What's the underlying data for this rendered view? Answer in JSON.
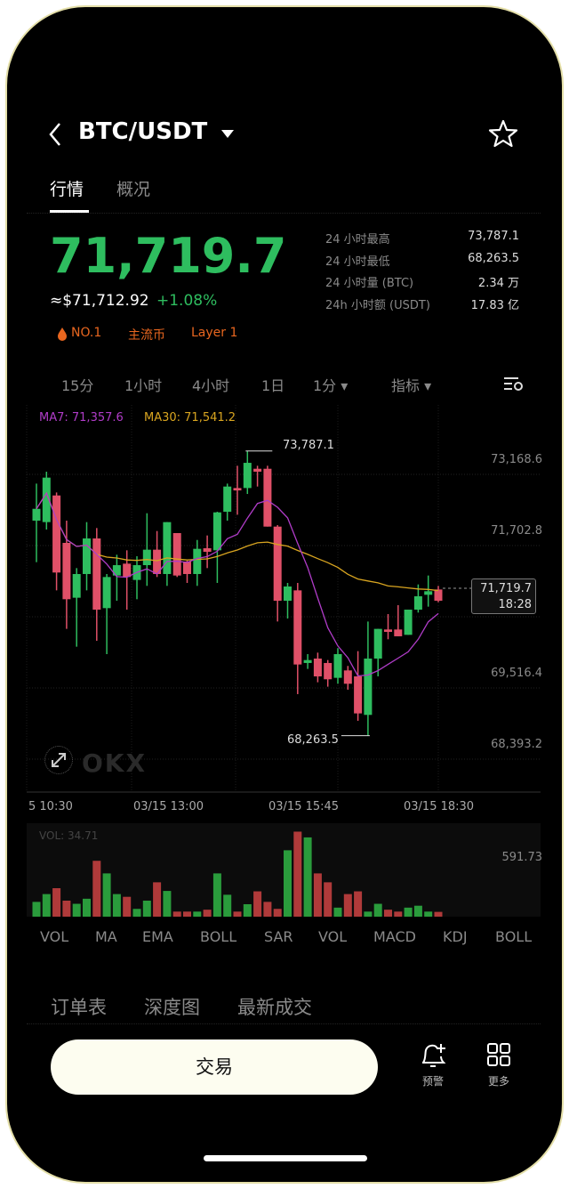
{
  "header": {
    "pair": "BTC/USDT",
    "back_icon": "chevron-left-icon",
    "dropdown_icon": "caret-down-icon",
    "favorite_icon": "star-icon"
  },
  "tabs": [
    {
      "label": "行情",
      "active": true
    },
    {
      "label": "概况",
      "active": false
    }
  ],
  "price": {
    "last": "71,719.7",
    "usd": "≈$71,712.92",
    "change": "+1.08%",
    "color": "#2ebd5f"
  },
  "tags": [
    {
      "label": "NO.1",
      "icon": "fire-icon"
    },
    {
      "label": "主流币"
    },
    {
      "label": "Layer 1"
    }
  ],
  "stats": [
    {
      "label": "24 小时最高",
      "value": "73,787.1"
    },
    {
      "label": "24 小时最低",
      "value": "68,263.5"
    },
    {
      "label": "24 小时量 (BTC)",
      "value": "2.34 万"
    },
    {
      "label": "24h 小时额 (USDT)",
      "value": "17.83 亿"
    }
  ],
  "timeframes": [
    {
      "label": "15分",
      "active": true
    },
    {
      "label": "1小时"
    },
    {
      "label": "4小时"
    },
    {
      "label": "1日"
    },
    {
      "label": "1分 ▾"
    },
    {
      "label": "指标 ▾"
    }
  ],
  "settings_icon": "chart-settings-icon",
  "indicators": [
    {
      "label": "VOL"
    },
    {
      "label": "MA",
      "active": true
    },
    {
      "label": "EMA"
    },
    {
      "label": "BOLL"
    },
    {
      "label": "SAR"
    },
    {
      "label": "VOL",
      "active": true
    },
    {
      "label": "MACD"
    },
    {
      "label": "KDJ"
    },
    {
      "label": "BOLL"
    }
  ],
  "orderbook_tabs": [
    {
      "label": "订单表",
      "active": true
    },
    {
      "label": "深度图"
    },
    {
      "label": "最新成交"
    }
  ],
  "footer": {
    "trade": "交易",
    "alert": "预警",
    "alert_icon": "bell-plus-icon",
    "more": "更多",
    "more_icon": "grid-icon"
  },
  "chart_data": {
    "type": "candlestick",
    "legend": {
      "ma7": "MA7: 71,357.6",
      "ma30": "MA30: 71,541.2"
    },
    "colors": {
      "up": "#2ebd5f",
      "down": "#e05068",
      "ma7": "#b03cc8",
      "ma30": "#d9a520"
    },
    "ylim": [
      67170,
      74680
    ],
    "y_ticks": [
      "73,168.6",
      "71,702.8",
      "69,516.4",
      "68,393.2"
    ],
    "x_ticks": [
      "5 10:30",
      "03/15 13:00",
      "03/15 15:45",
      "03/15 18:30"
    ],
    "high_label": "73,787.1",
    "low_label": "68,263.5",
    "current": {
      "price": "71,719.7",
      "time": "18:28"
    },
    "ohlc": [
      [
        72435,
        72665,
        73154,
        71630
      ],
      [
        72407,
        73270,
        73385,
        72263
      ],
      [
        72924,
        71429,
        72982,
        71083
      ],
      [
        72004,
        70911,
        72435,
        70336
      ],
      [
        70940,
        71400,
        71515,
        69990
      ],
      [
        71400,
        72090,
        72407,
        71083
      ],
      [
        72090,
        70709,
        72292,
        70105
      ],
      [
        70738,
        71342,
        71400,
        69846
      ],
      [
        71371,
        71572,
        71774,
        70882
      ],
      [
        71601,
        71342,
        71860,
        70709
      ],
      [
        71285,
        71572,
        71745,
        70911
      ],
      [
        71572,
        71872,
        72579,
        71170
      ],
      [
        71872,
        71400,
        72234,
        71342
      ],
      [
        71400,
        72407,
        72407,
        71170
      ],
      [
        72194,
        71371,
        72194,
        71342
      ],
      [
        71641,
        71400,
        71659,
        71227
      ],
      [
        71400,
        71889,
        72061,
        71170
      ],
      [
        71900,
        71831,
        72148,
        71515
      ],
      [
        71860,
        72596,
        72608,
        71227
      ],
      [
        72608,
        73097,
        73154,
        72435
      ],
      [
        73068,
        73022,
        73500,
        72550
      ],
      [
        73068,
        73557,
        73787.1,
        72953
      ],
      [
        73442,
        73385,
        73500,
        73097
      ],
      [
        73442,
        72320,
        73500,
        72320
      ],
      [
        72320,
        70882,
        72349,
        70479
      ],
      [
        70882,
        71158,
        71227,
        70537
      ],
      [
        71083,
        69645,
        71227,
        69070
      ],
      [
        69674,
        69731,
        69846,
        69559
      ],
      [
        69760,
        69414,
        69875,
        69300
      ],
      [
        69674,
        69358,
        69731,
        69214
      ],
      [
        69386,
        69846,
        69962,
        69271
      ],
      [
        69530,
        69271,
        69617,
        69156
      ],
      [
        69415,
        68696,
        69904,
        68552
      ],
      [
        68667,
        69760,
        70479,
        68263.5
      ],
      [
        69760,
        70336,
        70336,
        69415
      ],
      [
        70324,
        70278,
        70623,
        70134
      ],
      [
        70324,
        70192,
        70796,
        70192
      ],
      [
        70220,
        70709,
        70709,
        70220
      ],
      [
        70709,
        70968,
        71198,
        70652
      ],
      [
        70997,
        71066,
        71371,
        70767
      ],
      [
        71100,
        70882,
        71170,
        70853
      ]
    ],
    "volume": {
      "label": "VOL: 34.71",
      "max_label": "591.73",
      "values": [
        108,
        165,
        208,
        117,
        94,
        131,
        408,
        316,
        165,
        145,
        57,
        117,
        251,
        188,
        37,
        37,
        37,
        51,
        316,
        160,
        37,
        91,
        185,
        108,
        57,
        485,
        621,
        579,
        316,
        251,
        66,
        165,
        185,
        37,
        94,
        51,
        37,
        66,
        80,
        37,
        35
      ]
    }
  }
}
